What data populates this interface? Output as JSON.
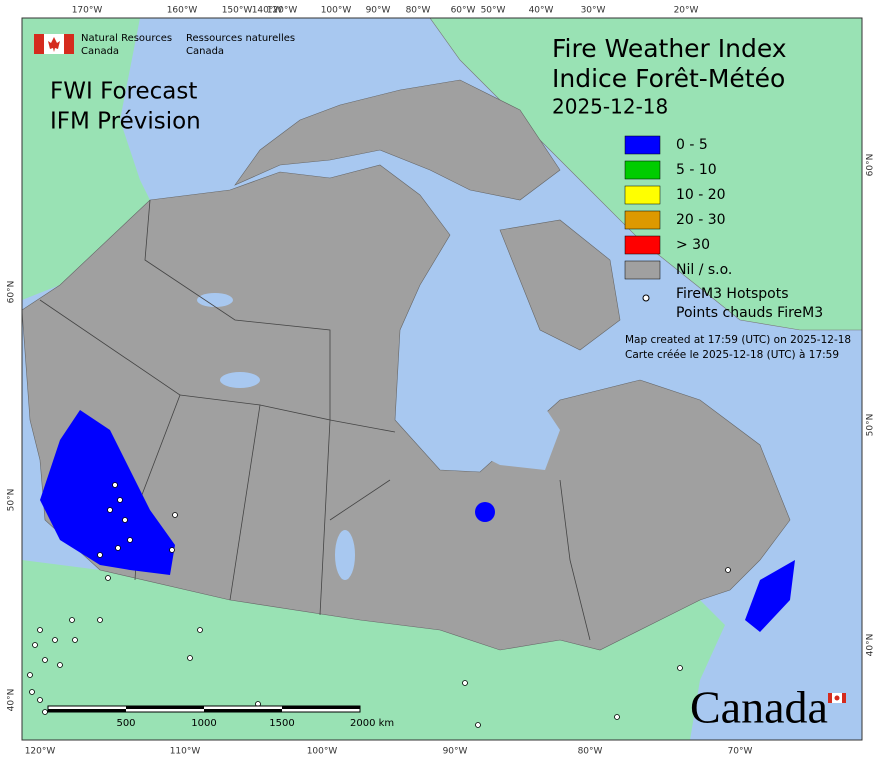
{
  "header": {
    "department_en": [
      "Natural Resources",
      "Canada"
    ],
    "department_fr": [
      "Ressources naturelles",
      "Canada"
    ]
  },
  "title": {
    "en": "Fire Weather Index",
    "fr": "Indice Forêt-Météo",
    "date": "2025-12-18"
  },
  "product": [
    "FWI Forecast",
    "IFM Prévision"
  ],
  "legend": {
    "items": [
      {
        "label": "0 - 5",
        "color": "#0000ff"
      },
      {
        "label": "5 - 10",
        "color": "#00cc00"
      },
      {
        "label": "10 - 20",
        "color": "#ffff00"
      },
      {
        "label": "20 - 30",
        "color": "#dd9900"
      },
      {
        "label": "> 30",
        "color": "#ff0000"
      },
      {
        "label": "Nil / s.o.",
        "color": "#a0a0a0"
      }
    ],
    "hotspots": [
      "FireM3 Hotspots",
      "Points chauds FireM3"
    ]
  },
  "notes": [
    "Map created at 17:59 (UTC) on 2025-12-18",
    "Carte créée le 2025-12-18 (UTC) à 17:59"
  ],
  "scale_bar": {
    "labels": [
      "500",
      "1000",
      "1500",
      "2000 km"
    ]
  },
  "graticule": {
    "top": [
      "170°W",
      "160°W",
      "150°W",
      "140°W",
      "120°W",
      "100°W",
      "90°W",
      "80°W",
      "60°W",
      "50°W",
      "40°W",
      "30°W",
      "20°W"
    ],
    "bottom": [
      "120°W",
      "110°W",
      "100°W",
      "90°W",
      "80°W",
      "70°W"
    ],
    "left": [
      "60°N",
      "50°N",
      "40°N"
    ],
    "right": [
      "60°N",
      "50°N",
      "40°N"
    ]
  },
  "wordmark": "Canada"
}
